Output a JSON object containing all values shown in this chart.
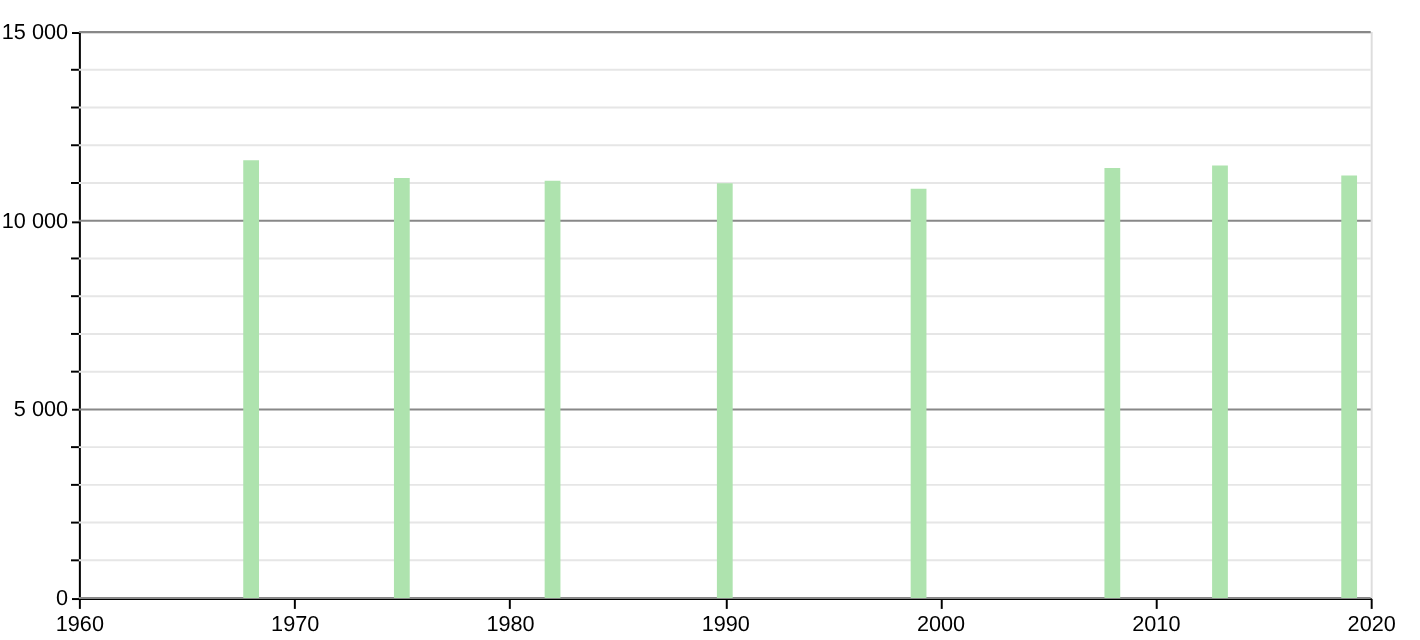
{
  "chart_data": {
    "type": "bar",
    "x": [
      1968,
      1975,
      1982,
      1990,
      1999,
      2008,
      2013,
      2019
    ],
    "values": [
      11600,
      11130,
      11060,
      10990,
      10850,
      11400,
      11460,
      11200
    ],
    "color": "#aee3ae",
    "xlim": [
      1960,
      2020
    ],
    "xticks": [
      1960,
      1970,
      1980,
      1990,
      2000,
      2010,
      2020
    ],
    "ylim": [
      0,
      15000
    ],
    "yticks": [
      {
        "value": 0,
        "label": "0"
      },
      {
        "value": 1000,
        "label": null
      },
      {
        "value": 2000,
        "label": null
      },
      {
        "value": 3000,
        "label": null
      },
      {
        "value": 4000,
        "label": null
      },
      {
        "value": 5000,
        "label": "5 000"
      },
      {
        "value": 6000,
        "label": null
      },
      {
        "value": 7000,
        "label": null
      },
      {
        "value": 8000,
        "label": null
      },
      {
        "value": 9000,
        "label": null
      },
      {
        "value": 10000,
        "label": "10 000"
      },
      {
        "value": 11000,
        "label": null
      },
      {
        "value": 12000,
        "label": null
      },
      {
        "value": 13000,
        "label": null
      },
      {
        "value": 14000,
        "label": null
      },
      {
        "value": 15000,
        "label": "15 000"
      }
    ],
    "grid": "y"
  }
}
